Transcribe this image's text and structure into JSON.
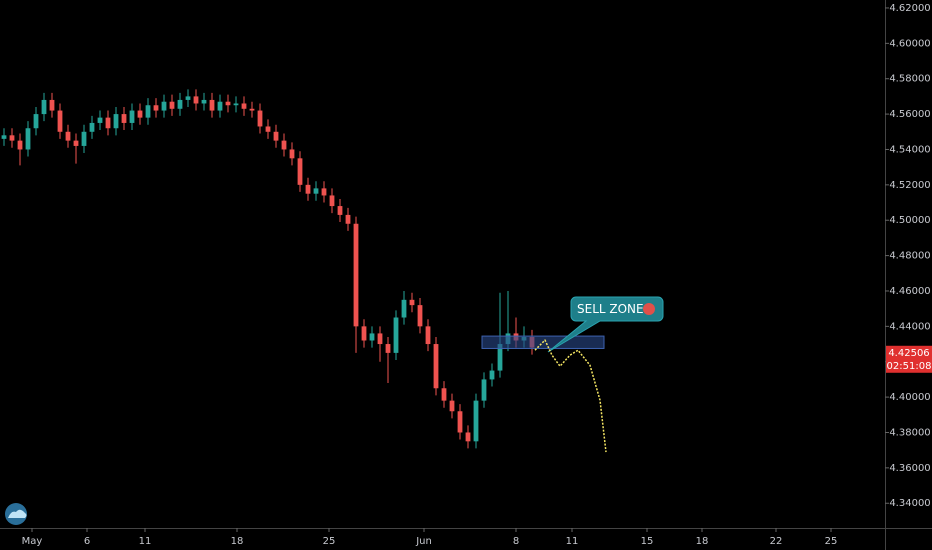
{
  "chart_data": {
    "type": "candlestick",
    "x": [
      0,
      1,
      2,
      3,
      4,
      5,
      6,
      7,
      8,
      9,
      10,
      11,
      12,
      13,
      14,
      15,
      16,
      17,
      18,
      19,
      20,
      21,
      22,
      23,
      24,
      25,
      26,
      27,
      28,
      29,
      30,
      31,
      32,
      33,
      34,
      35,
      36,
      37,
      38,
      39,
      40,
      41,
      42,
      43,
      44,
      45,
      46,
      47,
      48,
      49,
      50,
      51,
      52,
      53,
      54,
      55,
      56,
      57,
      58,
      59,
      60,
      61,
      62,
      63,
      64,
      65,
      66
    ],
    "open": [
      4.546,
      4.548,
      4.545,
      4.54,
      4.552,
      4.56,
      4.568,
      4.562,
      4.55,
      4.545,
      4.542,
      4.55,
      4.555,
      4.558,
      4.552,
      4.56,
      4.555,
      4.562,
      4.558,
      4.565,
      4.562,
      4.567,
      4.563,
      4.568,
      4.57,
      4.566,
      4.568,
      4.562,
      4.567,
      4.565,
      4.566,
      4.563,
      4.562,
      4.553,
      4.55,
      4.545,
      4.54,
      4.535,
      4.52,
      4.515,
      4.518,
      4.514,
      4.508,
      4.503,
      4.498,
      4.44,
      4.432,
      4.436,
      4.43,
      4.425,
      4.445,
      4.455,
      4.452,
      4.44,
      4.43,
      4.405,
      4.398,
      4.392,
      4.38,
      4.375,
      4.398,
      4.41,
      4.415,
      4.43,
      4.436,
      4.432,
      4.434
    ],
    "high": [
      4.552,
      4.552,
      4.549,
      4.556,
      4.564,
      4.572,
      4.572,
      4.566,
      4.554,
      4.549,
      4.554,
      4.559,
      4.562,
      4.562,
      4.564,
      4.564,
      4.566,
      4.566,
      4.569,
      4.569,
      4.571,
      4.571,
      4.572,
      4.574,
      4.574,
      4.572,
      4.572,
      4.571,
      4.571,
      4.57,
      4.57,
      4.567,
      4.566,
      4.557,
      4.554,
      4.549,
      4.544,
      4.539,
      4.524,
      4.522,
      4.522,
      4.518,
      4.512,
      4.507,
      4.502,
      4.444,
      4.44,
      4.44,
      4.434,
      4.449,
      4.46,
      4.459,
      4.456,
      4.444,
      4.434,
      4.409,
      4.402,
      4.396,
      4.384,
      4.402,
      4.414,
      4.419,
      4.459,
      4.46,
      4.445,
      4.44,
      4.438
    ],
    "low": [
      4.542,
      4.541,
      4.531,
      4.536,
      4.548,
      4.556,
      4.558,
      4.546,
      4.541,
      4.532,
      4.538,
      4.546,
      4.551,
      4.548,
      4.548,
      4.551,
      4.551,
      4.554,
      4.554,
      4.558,
      4.558,
      4.559,
      4.559,
      4.564,
      4.562,
      4.562,
      4.558,
      4.558,
      4.561,
      4.561,
      4.559,
      4.558,
      4.549,
      4.546,
      4.541,
      4.536,
      4.531,
      4.516,
      4.511,
      4.511,
      4.51,
      4.504,
      4.499,
      4.494,
      4.425,
      4.428,
      4.428,
      4.42,
      4.408,
      4.421,
      4.441,
      4.448,
      4.436,
      4.426,
      4.401,
      4.394,
      4.388,
      4.376,
      4.371,
      4.371,
      4.394,
      4.406,
      4.411,
      4.426,
      4.428,
      4.428,
      4.424
    ],
    "close": [
      4.548,
      4.545,
      4.54,
      4.552,
      4.56,
      4.568,
      4.562,
      4.55,
      4.545,
      4.542,
      4.55,
      4.555,
      4.558,
      4.552,
      4.56,
      4.555,
      4.562,
      4.558,
      4.565,
      4.562,
      4.567,
      4.563,
      4.568,
      4.57,
      4.566,
      4.568,
      4.562,
      4.567,
      4.565,
      4.566,
      4.563,
      4.562,
      4.553,
      4.55,
      4.545,
      4.54,
      4.535,
      4.52,
      4.515,
      4.518,
      4.514,
      4.508,
      4.503,
      4.498,
      4.44,
      4.432,
      4.436,
      4.43,
      4.425,
      4.445,
      4.455,
      4.452,
      4.44,
      4.43,
      4.405,
      4.398,
      4.392,
      4.38,
      4.375,
      4.398,
      4.41,
      4.415,
      4.43,
      4.436,
      4.432,
      4.434,
      4.428
    ],
    "up_color": "#26a69a",
    "down_color": "#ef5350",
    "xlim": [
      -0.5,
      110.125
    ],
    "xticks": [
      {
        "value": 3.5,
        "label": "May"
      },
      {
        "value": 10.375,
        "label": "6"
      },
      {
        "value": 17.625,
        "label": "11"
      },
      {
        "value": 29.125,
        "label": "18"
      },
      {
        "value": 40.625,
        "label": "25"
      },
      {
        "value": 52.5,
        "label": "Jun"
      },
      {
        "value": 64,
        "label": "8"
      },
      {
        "value": 71,
        "label": "11"
      },
      {
        "value": 80.375,
        "label": "15"
      },
      {
        "value": 87.25,
        "label": "18"
      },
      {
        "value": 96.5,
        "label": "22"
      },
      {
        "value": 103.375,
        "label": "25"
      }
    ],
    "ylim": [
      4.326,
      4.6245
    ],
    "yticks": [
      {
        "value": 4.34,
        "label": "4.34000"
      },
      {
        "value": 4.36,
        "label": "4.36000"
      },
      {
        "value": 4.38,
        "label": "4.38000"
      },
      {
        "value": 4.4,
        "label": "4.40000"
      },
      {
        "value": 4.42,
        "label": "4.42000"
      },
      {
        "value": 4.44,
        "label": "4.44000"
      },
      {
        "value": 4.46,
        "label": "4.46000"
      },
      {
        "value": 4.48,
        "label": "4.48000"
      },
      {
        "value": 4.5,
        "label": "4.50000"
      },
      {
        "value": 4.52,
        "label": "4.52000"
      },
      {
        "value": 4.54,
        "label": "4.54000"
      },
      {
        "value": 4.56,
        "label": "4.56000"
      },
      {
        "value": 4.58,
        "label": "4.58000"
      },
      {
        "value": 4.6,
        "label": "4.60000"
      },
      {
        "value": 4.62,
        "label": "4.62000"
      }
    ],
    "last_price": 4.42506,
    "countdown": "02:51:08",
    "zone": {
      "x": [
        59.75,
        75
      ],
      "y": [
        4.4275,
        4.4345
      ],
      "color": "#2a4a8a"
    },
    "projection": {
      "x": [
        66.375,
        67.625,
        68.5,
        69.5,
        70.75,
        71.75,
        73.25,
        74.5,
        75.25
      ],
      "y": [
        4.4265,
        4.4322,
        4.4237,
        4.4175,
        4.4237,
        4.4265,
        4.418,
        4.3983,
        4.3689
      ],
      "color": "#f5e663"
    },
    "annotation": "SELL ZONE"
  }
}
